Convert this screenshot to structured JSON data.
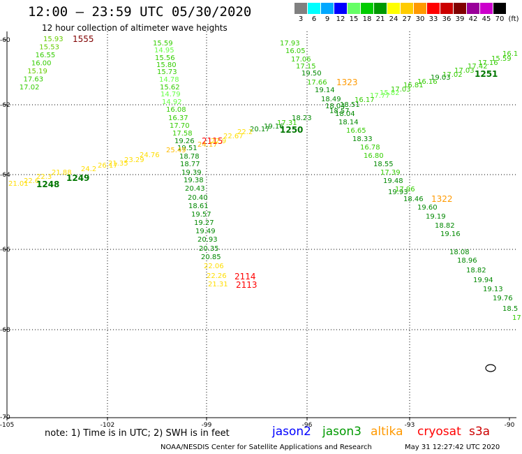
{
  "header": {
    "title": "12:00 – 23:59 UTC 05/30/2020",
    "subtitle": "12 hour collection of altimeter wave heights"
  },
  "scale": {
    "cells": [
      {
        "color": "#808080",
        "label": "3"
      },
      {
        "color": "#00ffff",
        "label": "6"
      },
      {
        "color": "#00a8ff",
        "label": "9"
      },
      {
        "color": "#0000ff",
        "label": "12"
      },
      {
        "color": "#66ff66",
        "label": "15"
      },
      {
        "color": "#00cc00",
        "label": "18"
      },
      {
        "color": "#009900",
        "label": "21"
      },
      {
        "color": "#ffff00",
        "label": "24"
      },
      {
        "color": "#ffcc00",
        "label": "27"
      },
      {
        "color": "#ff9900",
        "label": "30"
      },
      {
        "color": "#ff0000",
        "label": "33"
      },
      {
        "color": "#cc0000",
        "label": "36"
      },
      {
        "color": "#800000",
        "label": "39"
      },
      {
        "color": "#990099",
        "label": "42"
      },
      {
        "color": "#cc00cc",
        "label": "45"
      },
      {
        "color": "#000000",
        "label": "70"
      }
    ],
    "unit": "(ft)"
  },
  "axes": {
    "lon_labels": [
      "-105",
      "-102",
      "-99",
      "-96",
      "-93",
      "-90"
    ],
    "lat_labels": [
      "-60",
      "-62",
      "-64",
      "-66",
      "-68",
      "-70"
    ]
  },
  "tracks": [
    {
      "time": "1555",
      "color": "#800000",
      "points": [
        {
          "v": "15.93",
          "c": "#66cc00"
        },
        {
          "v": "15.53",
          "c": "#66cc00"
        },
        {
          "v": "16.55",
          "c": "#33cc00"
        },
        {
          "v": "16.00",
          "c": "#33cc00"
        },
        {
          "v": "15.19",
          "c": "#66cc00"
        },
        {
          "v": "17.63",
          "c": "#33cc00"
        },
        {
          "v": "17.02",
          "c": "#33cc00"
        }
      ]
    },
    {
      "time": "2115",
      "color": "#ff0000",
      "points": [
        {
          "v": "15.59",
          "c": "#33cc00"
        },
        {
          "v": "14.95",
          "c": "#66ff44"
        },
        {
          "v": "15.56",
          "c": "#33cc00"
        },
        {
          "v": "15.80",
          "c": "#33cc00"
        },
        {
          "v": "15.73",
          "c": "#33cc00"
        },
        {
          "v": "14.78",
          "c": "#66ff44"
        },
        {
          "v": "15.62",
          "c": "#33cc00"
        },
        {
          "v": "14.79",
          "c": "#66ff44"
        },
        {
          "v": "14.92",
          "c": "#66ff44"
        },
        {
          "v": "16.08",
          "c": "#33cc00"
        },
        {
          "v": "16.37",
          "c": "#33cc00"
        },
        {
          "v": "17.70",
          "c": "#33cc00"
        },
        {
          "v": "17.58",
          "c": "#33cc00"
        },
        {
          "v": "19.26",
          "c": "#008800"
        },
        {
          "v": "19.51",
          "c": "#008800"
        },
        {
          "v": "18.78",
          "c": "#008800"
        },
        {
          "v": "18.77",
          "c": "#008800"
        },
        {
          "v": "19.39",
          "c": "#008800"
        },
        {
          "v": "19.38",
          "c": "#008800"
        },
        {
          "v": "20.43",
          "c": "#008800"
        },
        {
          "v": "20.40",
          "c": "#008800"
        },
        {
          "v": "18.61",
          "c": "#008800"
        },
        {
          "v": "19.57",
          "c": "#008800"
        },
        {
          "v": "19.27",
          "c": "#008800"
        },
        {
          "v": "19.49",
          "c": "#008800"
        },
        {
          "v": "20.93",
          "c": "#008800"
        },
        {
          "v": "20.35",
          "c": "#008800"
        },
        {
          "v": "20.85",
          "c": "#008800"
        },
        {
          "v": "22.06",
          "c": "#ffdd00"
        },
        {
          "v": "22.26",
          "c": "#ffdd00"
        },
        {
          "v": "21.31",
          "c": "#ffdd00"
        }
      ]
    },
    {
      "time": "2114",
      "color": "#ff0000",
      "points": []
    },
    {
      "time": "2113",
      "color": "#ff0000",
      "points": []
    },
    {
      "time": "1323",
      "color": "#ff9900",
      "points": [
        {
          "v": "17.93",
          "c": "#33cc00"
        },
        {
          "v": "16.05",
          "c": "#33cc00"
        },
        {
          "v": "17.06",
          "c": "#33cc00"
        },
        {
          "v": "17.15",
          "c": "#33cc00"
        },
        {
          "v": "19.50",
          "c": "#008800"
        },
        {
          "v": "17.66",
          "c": "#33cc00"
        },
        {
          "v": "19.14",
          "c": "#008800"
        },
        {
          "v": "18.49",
          "c": "#008800"
        },
        {
          "v": "18.04",
          "c": "#008800"
        },
        {
          "v": "18.57",
          "c": "#008800"
        },
        {
          "v": "18.04",
          "c": "#008800"
        },
        {
          "v": "18.14",
          "c": "#008800"
        },
        {
          "v": "16.65",
          "c": "#33cc00"
        },
        {
          "v": "18.33",
          "c": "#008800"
        },
        {
          "v": "16.78",
          "c": "#33cc00"
        },
        {
          "v": "16.80",
          "c": "#33cc00"
        },
        {
          "v": "18.55",
          "c": "#008800"
        },
        {
          "v": "17.39",
          "c": "#33cc00"
        },
        {
          "v": "19.48",
          "c": "#008800"
        },
        {
          "v": "19.93",
          "c": "#008800"
        },
        {
          "v": "17.96",
          "c": "#33cc00"
        },
        {
          "v": "18.46",
          "c": "#008800"
        },
        {
          "v": "19.60",
          "c": "#008800"
        },
        {
          "v": "19.19",
          "c": "#008800"
        },
        {
          "v": "18.82",
          "c": "#008800"
        },
        {
          "v": "19.16",
          "c": "#008800"
        },
        {
          "v": "18.08",
          "c": "#008800"
        },
        {
          "v": "18.96",
          "c": "#008800"
        },
        {
          "v": "18.82",
          "c": "#008800"
        },
        {
          "v": "19.94",
          "c": "#008800"
        },
        {
          "v": "19.13",
          "c": "#008800"
        },
        {
          "v": "19.76",
          "c": "#008800"
        },
        {
          "v": "18.5",
          "c": "#008800"
        },
        {
          "v": "17",
          "c": "#33cc00"
        }
      ]
    },
    {
      "time": "1322",
      "color": "#ff9900",
      "points": []
    },
    {
      "time": "1251",
      "color": "#007700",
      "points": [
        {
          "v": "16.1",
          "c": "#33cc00"
        },
        {
          "v": "15.59",
          "c": "#33cc00"
        },
        {
          "v": "17.16",
          "c": "#33cc00"
        },
        {
          "v": "17.42",
          "c": "#33cc00"
        },
        {
          "v": "17.03",
          "c": "#33cc00"
        },
        {
          "v": "17.02",
          "c": "#33cc00"
        },
        {
          "v": "19.03",
          "c": "#008800"
        },
        {
          "v": "16.16",
          "c": "#33cc00"
        },
        {
          "v": "16.81",
          "c": "#33cc00"
        },
        {
          "v": "17.03",
          "c": "#33cc00"
        },
        {
          "v": "15.82",
          "c": "#66ff44"
        },
        {
          "v": "17.77",
          "c": "#66ff44"
        },
        {
          "v": "16.17",
          "c": "#33cc00"
        },
        {
          "v": "18.51",
          "c": "#008800"
        }
      ]
    },
    {
      "time": "1250",
      "color": "#007700",
      "points": [
        {
          "v": "18.23",
          "c": "#008800"
        },
        {
          "v": "17.31",
          "c": "#33cc00"
        },
        {
          "v": "19.16",
          "c": "#008800"
        },
        {
          "v": "20.17",
          "c": "#008800"
        },
        {
          "v": "22.2",
          "c": "#ffdd00"
        },
        {
          "v": "22.67",
          "c": "#ffdd00"
        },
        {
          "v": "22.9",
          "c": "#ffdd00"
        },
        {
          "v": "24.17",
          "c": "#ffbb00"
        },
        {
          "v": "25.49",
          "c": "#ffbb00"
        },
        {
          "v": "24.76",
          "c": "#ffdd00"
        },
        {
          "v": "23.29",
          "c": "#ffdd00"
        },
        {
          "v": "21.35",
          "c": "#ffdd00"
        },
        {
          "v": "26.17",
          "c": "#ffdd00"
        },
        {
          "v": "24.2",
          "c": "#ffdd00"
        }
      ]
    },
    {
      "time": "1249",
      "color": "#007700",
      "points": [
        {
          "v": "21.88",
          "c": "#ffdd00"
        },
        {
          "v": "22.3",
          "c": "#ffdd00"
        }
      ]
    },
    {
      "time": "1248",
      "color": "#007700",
      "points": [
        {
          "v": "21.01",
          "c": "#ffdd00"
        },
        {
          "v": "22.6",
          "c": "#ffdd00"
        }
      ]
    }
  ],
  "footer": {
    "note": "note:  1) Time is in UTC;  2) SWH is in feet",
    "satellites": [
      {
        "name": "jason2",
        "color": "#0000ff"
      },
      {
        "name": "jason3",
        "color": "#009900"
      },
      {
        "name": "altika",
        "color": "#ff9900"
      },
      {
        "name": "cryosat",
        "color": "#ff0000"
      },
      {
        "name": "s3a",
        "color": "#cc0000"
      }
    ],
    "credit": "NOAA/NESDIS Center for Satellite Applications and Research",
    "stamp": "May 31 12:27:42 UTC 2020"
  }
}
